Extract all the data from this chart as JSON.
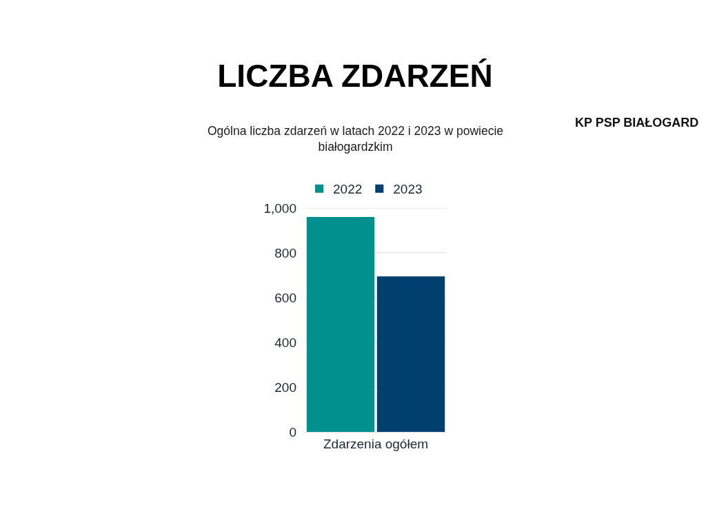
{
  "chart_data": {
    "type": "bar",
    "title": "LICZBA ZDARZEŃ",
    "subtitle": "Ogólna liczba zdarzeń w latach 2022 i 2023 w powiecie białogardzkim",
    "annotations": [
      "KP PSP BIAŁOGARD"
    ],
    "categories": [
      "Zdarzenia ogółem"
    ],
    "series": [
      {
        "name": "2022",
        "color": "#00918f",
        "values": [
          960
        ]
      },
      {
        "name": "2023",
        "color": "#003f6e",
        "values": [
          695
        ]
      }
    ],
    "ylim": [
      0,
      1000
    ],
    "yticks": [
      0,
      200,
      400,
      600,
      800,
      {
        "value": 1000,
        "label": "1,000"
      }
    ],
    "grid": "y",
    "legend": "top"
  }
}
